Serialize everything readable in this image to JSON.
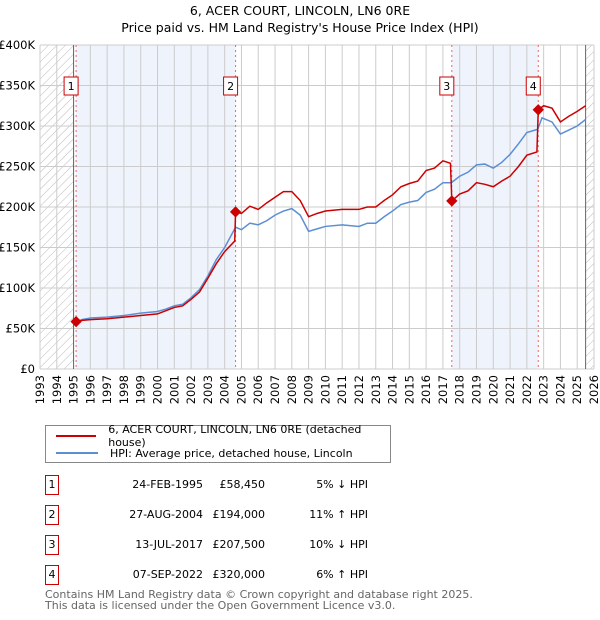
{
  "chart_data": {
    "type": "line",
    "title": "6, ACER COURT, LINCOLN, LN6 0RE",
    "subtitle": "Price paid vs. HM Land Registry's House Price Index (HPI)",
    "xlim": [
      1993,
      2026
    ],
    "ylim": [
      0,
      400000
    ],
    "x_ticks": [
      "1993",
      "1994",
      "1995",
      "1996",
      "1997",
      "1998",
      "1999",
      "2000",
      "2001",
      "2002",
      "2003",
      "2004",
      "2005",
      "2006",
      "2007",
      "2008",
      "2009",
      "2010",
      "2011",
      "2012",
      "2013",
      "2014",
      "2015",
      "2016",
      "2017",
      "2018",
      "2019",
      "2020",
      "2021",
      "2022",
      "2023",
      "2024",
      "2025",
      "2026"
    ],
    "y_ticks": [
      {
        "v": 0,
        "label": "£0"
      },
      {
        "v": 50000,
        "label": "£50K"
      },
      {
        "v": 100000,
        "label": "£100K"
      },
      {
        "v": 150000,
        "label": "£150K"
      },
      {
        "v": 200000,
        "label": "£200K"
      },
      {
        "v": 250000,
        "label": "£250K"
      },
      {
        "v": 300000,
        "label": "£300K"
      },
      {
        "v": 350000,
        "label": "£350K"
      },
      {
        "v": 400000,
        "label": "£400K"
      }
    ],
    "grid": true,
    "shaded_ranges": [
      [
        1995.15,
        2004.65
      ],
      [
        2017.53,
        2022.68
      ]
    ],
    "hatched_ranges": [
      [
        1993,
        1995
      ],
      [
        2025.5,
        2026
      ]
    ],
    "series": [
      {
        "name": "6, ACER COURT, LINCOLN, LN6 0RE (detached house)",
        "color": "#cc0000",
        "points": [
          [
            1995.15,
            58450
          ],
          [
            1995.5,
            60000
          ],
          [
            1996,
            61000
          ],
          [
            1997,
            62000
          ],
          [
            1998,
            64000
          ],
          [
            1999,
            66000
          ],
          [
            2000,
            68000
          ],
          [
            2000.5,
            72000
          ],
          [
            2001,
            76000
          ],
          [
            2001.5,
            78000
          ],
          [
            2002,
            86000
          ],
          [
            2002.5,
            95000
          ],
          [
            2003,
            112000
          ],
          [
            2003.5,
            130000
          ],
          [
            2004,
            145000
          ],
          [
            2004.6,
            158000
          ],
          [
            2004.65,
            194000
          ],
          [
            2005,
            192000
          ],
          [
            2005.5,
            201000
          ],
          [
            2006,
            197000
          ],
          [
            2006.5,
            205000
          ],
          [
            2007,
            212000
          ],
          [
            2007.5,
            219000
          ],
          [
            2008,
            219000
          ],
          [
            2008.5,
            208000
          ],
          [
            2009,
            188000
          ],
          [
            2009.5,
            192000
          ],
          [
            2010,
            195000
          ],
          [
            2011,
            197000
          ],
          [
            2012,
            197000
          ],
          [
            2012.5,
            200000
          ],
          [
            2013,
            200000
          ],
          [
            2013.5,
            208000
          ],
          [
            2014,
            215000
          ],
          [
            2014.5,
            225000
          ],
          [
            2015,
            229000
          ],
          [
            2015.5,
            232000
          ],
          [
            2016,
            245000
          ],
          [
            2016.5,
            248000
          ],
          [
            2017,
            257000
          ],
          [
            2017.45,
            254000
          ],
          [
            2017.53,
            207500
          ],
          [
            2018,
            216000
          ],
          [
            2018.5,
            220000
          ],
          [
            2019,
            230000
          ],
          [
            2019.5,
            228000
          ],
          [
            2020,
            225000
          ],
          [
            2020.5,
            232000
          ],
          [
            2021,
            238000
          ],
          [
            2021.5,
            250000
          ],
          [
            2022,
            264000
          ],
          [
            2022.6,
            268000
          ],
          [
            2022.68,
            320000
          ],
          [
            2023,
            325000
          ],
          [
            2023.5,
            322000
          ],
          [
            2024,
            305000
          ],
          [
            2024.5,
            312000
          ],
          [
            2025,
            318000
          ],
          [
            2025.5,
            325000
          ]
        ]
      },
      {
        "name": "HPI: Average price, detached house, Lincoln",
        "color": "#5b8fd4",
        "points": [
          [
            1995.15,
            58000
          ],
          [
            1995.5,
            61000
          ],
          [
            1996,
            63000
          ],
          [
            1997,
            64000
          ],
          [
            1998,
            66000
          ],
          [
            1999,
            69000
          ],
          [
            2000,
            71000
          ],
          [
            2000.5,
            74000
          ],
          [
            2001,
            78000
          ],
          [
            2001.5,
            80000
          ],
          [
            2002,
            88000
          ],
          [
            2002.5,
            98000
          ],
          [
            2003,
            115000
          ],
          [
            2003.5,
            135000
          ],
          [
            2004,
            150000
          ],
          [
            2004.65,
            175000
          ],
          [
            2005,
            172000
          ],
          [
            2005.5,
            180000
          ],
          [
            2006,
            178000
          ],
          [
            2006.5,
            183000
          ],
          [
            2007,
            190000
          ],
          [
            2007.5,
            195000
          ],
          [
            2008,
            198000
          ],
          [
            2008.5,
            190000
          ],
          [
            2009,
            170000
          ],
          [
            2009.5,
            173000
          ],
          [
            2010,
            176000
          ],
          [
            2011,
            178000
          ],
          [
            2012,
            176000
          ],
          [
            2012.5,
            180000
          ],
          [
            2013,
            180000
          ],
          [
            2013.5,
            188000
          ],
          [
            2014,
            195000
          ],
          [
            2014.5,
            203000
          ],
          [
            2015,
            206000
          ],
          [
            2015.5,
            208000
          ],
          [
            2016,
            218000
          ],
          [
            2016.5,
            222000
          ],
          [
            2017,
            230000
          ],
          [
            2017.5,
            230000
          ],
          [
            2018,
            238000
          ],
          [
            2018.5,
            243000
          ],
          [
            2019,
            252000
          ],
          [
            2019.5,
            253000
          ],
          [
            2020,
            248000
          ],
          [
            2020.5,
            255000
          ],
          [
            2021,
            265000
          ],
          [
            2021.5,
            278000
          ],
          [
            2022,
            292000
          ],
          [
            2022.65,
            296000
          ],
          [
            2022.9,
            310000
          ],
          [
            2023.5,
            305000
          ],
          [
            2024,
            290000
          ],
          [
            2024.5,
            295000
          ],
          [
            2025,
            300000
          ],
          [
            2025.5,
            308000
          ]
        ]
      }
    ],
    "sales": [
      {
        "n": "1",
        "x": 1995.15,
        "price": 58450,
        "date": "24-FEB-1995",
        "price_label": "£58,450",
        "hpi": "5% ↓ HPI"
      },
      {
        "n": "2",
        "x": 2004.65,
        "price": 194000,
        "date": "27-AUG-2004",
        "price_label": "£194,000",
        "hpi": "11% ↑ HPI"
      },
      {
        "n": "3",
        "x": 2017.53,
        "price": 207500,
        "date": "13-JUL-2017",
        "price_label": "£207,500",
        "hpi": "10% ↓ HPI"
      },
      {
        "n": "4",
        "x": 2022.68,
        "price": 320000,
        "date": "07-SEP-2022",
        "price_label": "£320,000",
        "hpi": "6% ↑ HPI"
      }
    ]
  },
  "footer": {
    "line1": "Contains HM Land Registry data © Crown copyright and database right 2025.",
    "line2": "This data is licensed under the Open Government Licence v3.0."
  }
}
